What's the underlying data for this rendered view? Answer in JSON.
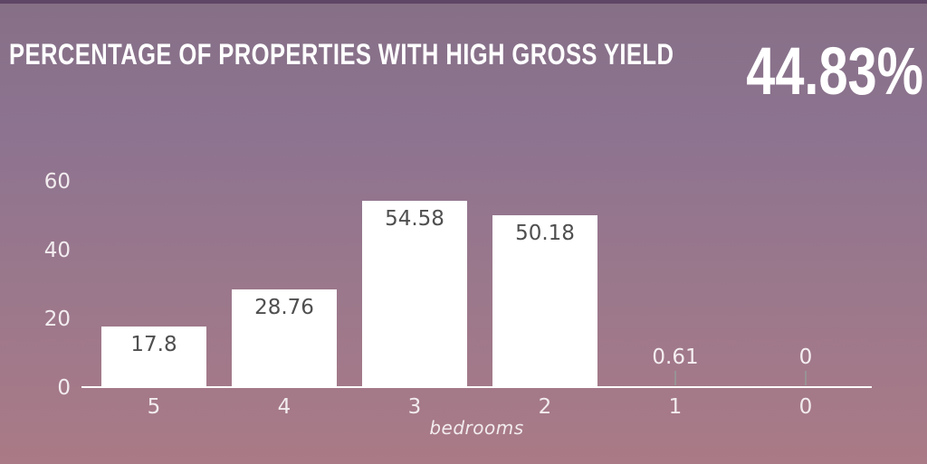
{
  "page": {
    "top_strip_color": "#5e4666",
    "background_top_color": "#867086",
    "background_bottom_color": "#aa7a86"
  },
  "header": {
    "title": "PERCENTAGE OF PROPERTIES WITH HIGH GROSS YIELD",
    "headline_value": "44.83%"
  },
  "chart_data": {
    "type": "bar",
    "title": "PERCENTAGE OF PROPERTIES WITH HIGH GROSS YIELD",
    "categories": [
      "5",
      "4",
      "3",
      "2",
      "1",
      "0"
    ],
    "values": [
      17.8,
      28.76,
      54.58,
      50.18,
      0.61,
      0
    ],
    "value_labels": [
      "17.8",
      "28.76",
      "54.58",
      "50.18",
      "0.61",
      "0"
    ],
    "xlabel": "bedrooms",
    "ylabel": "",
    "yticks": [
      0,
      20,
      40,
      60
    ],
    "ylim": [
      0,
      60
    ],
    "grid": false,
    "legend": false,
    "bar_color": "#ffffff",
    "axis_line_color": "#ffffff",
    "inside_label_color": "#4f4f4f",
    "outside_label_color": "#f5eff2",
    "tick_label_color": "#f2ecef"
  }
}
